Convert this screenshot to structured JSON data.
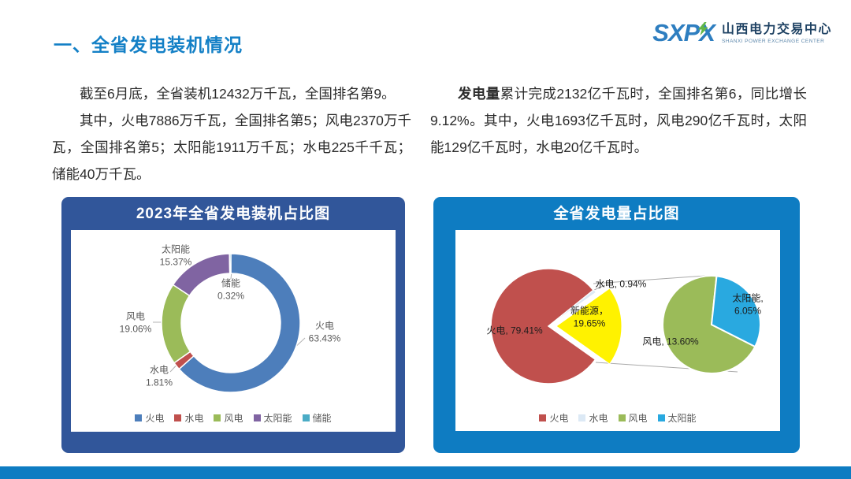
{
  "header": {
    "title": "一、全省发电装机情况",
    "logo": {
      "abbr": "SXPX",
      "name_cn": "山西电力交易中心",
      "name_en": "SHANXI POWER EXCHANGE CENTER"
    }
  },
  "paragraphs": {
    "left_p1": "截至6月底，全省装机12432万千瓦，全国排名第9。",
    "left_p2": "其中，火电7886万千瓦，全国排名第5；风电2370万千瓦，全国排名第5；太阳能1911万千瓦；水电225千千瓦；储能40万千瓦。",
    "right_lead": "发电量",
    "right_rest": "累计完成2132亿千瓦时，全国排名第6，同比增长9.12%。其中，火电1693亿千瓦时，风电290亿千瓦时，太阳能129亿千瓦时，水电20亿千瓦时。"
  },
  "colors": {
    "heading": "#1480C6",
    "panel_left": "#31569A",
    "panel_right": "#0E7CC2",
    "bottom_bar": "#0E7CC2",
    "logo_blue": "#2E7EC0",
    "logo_green": "#62B746"
  },
  "chart_data": [
    {
      "type": "pie",
      "variant": "donut",
      "title": "2023年全省发电装机占比图",
      "legend_position": "bottom",
      "series": [
        {
          "label": "火电",
          "value": 63.43,
          "color": "#4D7EBB",
          "display": "火电\n63.43%"
        },
        {
          "label": "水电",
          "value": 1.81,
          "color": "#C0504D",
          "display": "水电\n1.81%"
        },
        {
          "label": "风电",
          "value": 19.06,
          "color": "#9BBB59",
          "display": "风电\n19.06%"
        },
        {
          "label": "太阳能",
          "value": 15.37,
          "color": "#8064A2",
          "display": "太阳能\n15.37%"
        },
        {
          "label": "储能",
          "value": 0.32,
          "color": "#4BACC6",
          "display": "储能\n0.32%"
        }
      ]
    },
    {
      "type": "pie",
      "variant": "pie-of-pie",
      "title": "全省发电量占比图",
      "legend_position": "bottom",
      "main": [
        {
          "label": "火电",
          "value": 79.41,
          "color": "#C0504D",
          "display": "火电, 79.41%"
        },
        {
          "label": "水电",
          "value": 0.94,
          "color": "#DCE9F5",
          "display": "水电, 0.94%"
        },
        {
          "label": "新能源",
          "value": 19.65,
          "color": "#FFF200",
          "display": "新能源，\n19.65%"
        }
      ],
      "secondary": [
        {
          "label": "风电",
          "value": 13.6,
          "color": "#9BBB59",
          "display": "风电, 13.60%"
        },
        {
          "label": "太阳能",
          "value": 6.05,
          "color": "#29A9E0",
          "display": "太阳能, 6.05%"
        }
      ],
      "legend": [
        {
          "label": "火电",
          "color": "#C0504D"
        },
        {
          "label": "水电",
          "color": "#DCE9F5"
        },
        {
          "label": "风电",
          "color": "#9BBB59"
        },
        {
          "label": "太阳能",
          "color": "#29A9E0"
        }
      ]
    }
  ]
}
